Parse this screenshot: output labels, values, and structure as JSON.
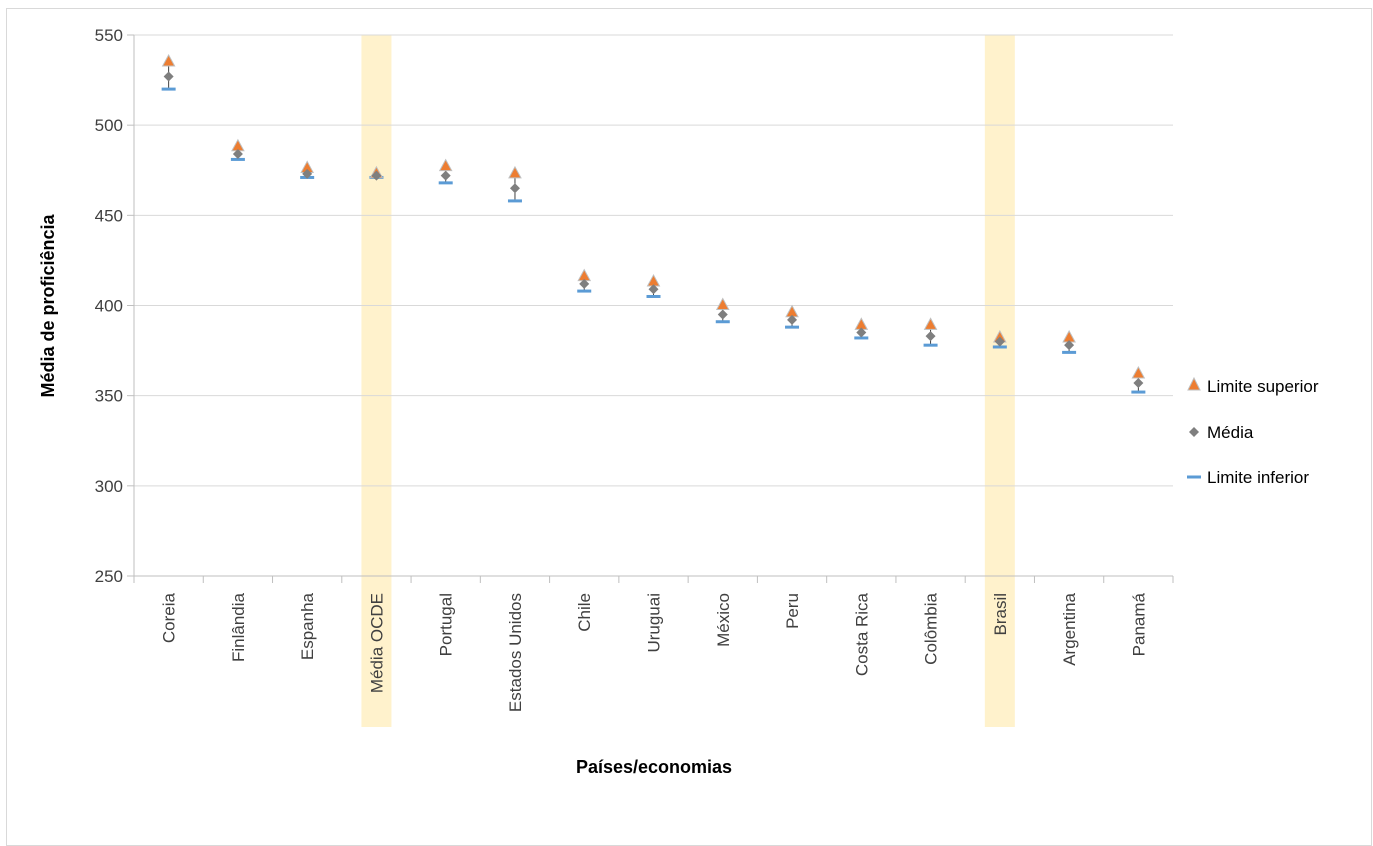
{
  "chart_data": {
    "type": "scatter",
    "categories": [
      "Coreia",
      "Finlândia",
      "Espanha",
      "Média OCDE",
      "Portugal",
      "Estados Unidos",
      "Chile",
      "Uruguai",
      "México",
      "Peru",
      "Costa Rica",
      "Colômbia",
      "Brasil",
      "Argentina",
      "Panamá"
    ],
    "highlighted_categories": [
      "Média OCDE",
      "Brasil"
    ],
    "series": [
      {
        "name": "Limite superior",
        "marker": "triangle",
        "color": "#ed7d31",
        "values": [
          535,
          488,
          476,
          473,
          477,
          473,
          416,
          413,
          400,
          396,
          389,
          389,
          382,
          382,
          362
        ]
      },
      {
        "name": "Média",
        "marker": "diamond",
        "color": "#7f7f7f",
        "values": [
          527,
          484,
          473,
          472,
          472,
          465,
          412,
          409,
          395,
          392,
          385,
          383,
          380,
          378,
          357
        ]
      },
      {
        "name": "Limite inferior",
        "marker": "dash",
        "color": "#5b9bd5",
        "values": [
          520,
          481,
          471,
          471,
          468,
          458,
          408,
          405,
          391,
          388,
          382,
          378,
          377,
          374,
          352
        ]
      }
    ],
    "xlabel": "Países/economias",
    "ylabel": "Média de proficiência",
    "ylim": [
      250,
      550
    ],
    "yticks": [
      "550",
      "500",
      "450",
      "400",
      "350",
      "300",
      "250"
    ],
    "grid": true,
    "legend_position": "right",
    "highlight_color": "#fff2cc"
  }
}
